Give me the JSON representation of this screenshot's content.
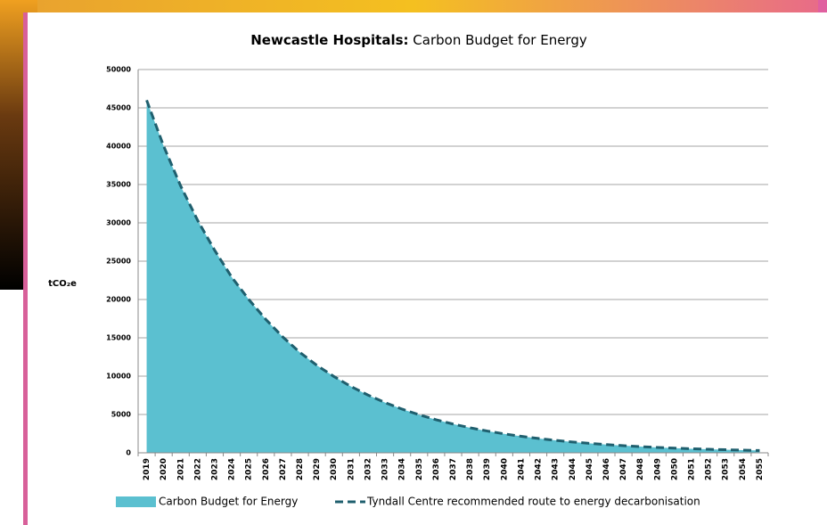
{
  "chart_data": {
    "type": "area-line",
    "title_prefix": "Newcastle Hospitals:",
    "title": "Carbon Budget for Energy",
    "y_label": "tCO₂e",
    "categories": [
      "2019",
      "2020",
      "2021",
      "2022",
      "2023",
      "2024",
      "2025",
      "2026",
      "2027",
      "2028",
      "2029",
      "2030",
      "2031",
      "2032",
      "2033",
      "2034",
      "2035",
      "2036",
      "2037",
      "2038",
      "2039",
      "2040",
      "2041",
      "2042",
      "2043",
      "2044",
      "2045",
      "2046",
      "2047",
      "2048",
      "2049",
      "2050",
      "2051",
      "2052",
      "2053",
      "2054",
      "2055"
    ],
    "series": [
      {
        "name": "Carbon Budget for Energy",
        "kind": "area",
        "color": "#5bc0d0",
        "values": [
          46000,
          40000,
          34800,
          30300,
          26400,
          22900,
          20000,
          17400,
          15100,
          13100,
          11400,
          9950,
          8650,
          7530,
          6550,
          5700,
          4960,
          4310,
          3750,
          3260,
          2840,
          2470,
          2150,
          1870,
          1630,
          1410,
          1230,
          1070,
          930,
          810,
          700,
          610,
          530,
          460,
          400,
          350,
          300
        ]
      },
      {
        "name": "Tyndall Centre recommended route to energy decarbonisation",
        "kind": "dashed-line",
        "color": "#1f5f6e",
        "values": [
          46000,
          40000,
          34800,
          30300,
          26400,
          22900,
          20000,
          17400,
          15100,
          13100,
          11400,
          9950,
          8650,
          7530,
          6550,
          5700,
          4960,
          4310,
          3750,
          3260,
          2840,
          2470,
          2150,
          1870,
          1630,
          1410,
          1230,
          1070,
          930,
          810,
          700,
          610,
          530,
          460,
          400,
          350,
          300
        ]
      }
    ],
    "ylim": [
      0,
      50000
    ],
    "yticks": [
      0,
      5000,
      10000,
      15000,
      20000,
      25000,
      30000,
      35000,
      40000,
      45000,
      50000
    ],
    "grid": true
  }
}
